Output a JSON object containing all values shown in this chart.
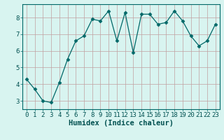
{
  "x": [
    0,
    1,
    2,
    3,
    4,
    5,
    6,
    7,
    8,
    9,
    10,
    11,
    12,
    13,
    14,
    15,
    16,
    17,
    18,
    19,
    20,
    21,
    22,
    23
  ],
  "y": [
    4.3,
    3.7,
    3.0,
    2.9,
    4.1,
    5.5,
    6.6,
    6.9,
    7.9,
    7.8,
    8.4,
    6.6,
    8.3,
    5.9,
    8.2,
    8.2,
    7.6,
    7.7,
    8.4,
    7.8,
    6.9,
    6.3,
    6.6,
    7.6
  ],
  "xlabel": "Humidex (Indice chaleur)",
  "xlim": [
    -0.5,
    23.5
  ],
  "ylim": [
    2.5,
    8.8
  ],
  "yticks": [
    3,
    4,
    5,
    6,
    7,
    8
  ],
  "xticks": [
    0,
    1,
    2,
    3,
    4,
    5,
    6,
    7,
    8,
    9,
    10,
    11,
    12,
    13,
    14,
    15,
    16,
    17,
    18,
    19,
    20,
    21,
    22,
    23
  ],
  "line_color": "#006868",
  "marker": "D",
  "marker_size": 2.5,
  "bg_color": "#d8f4f0",
  "grid_color": "#c0a0a0",
  "xlabel_fontsize": 7.5,
  "tick_fontsize": 6.5
}
